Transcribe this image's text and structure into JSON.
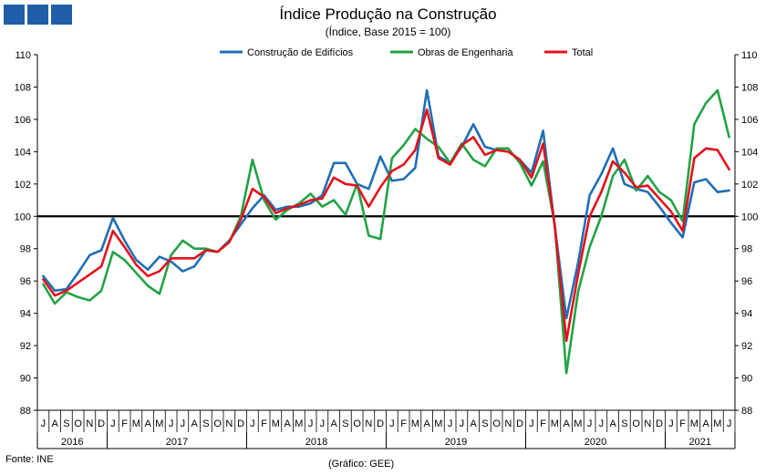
{
  "title": "Índice Produção na Construção",
  "subtitle": "(Índice, Base 2015 = 100)",
  "source": "Fonte: INE",
  "credit": "(Gráfico: GEE)",
  "chart_data": {
    "type": "line",
    "ylim": [
      88,
      110
    ],
    "ytick_step": 2,
    "reference_line": 100,
    "grid": false,
    "legend_position": "top",
    "month_labels": [
      "J",
      "A",
      "S",
      "O",
      "N",
      "D",
      "J",
      "F",
      "M",
      "A",
      "M",
      "J",
      "J",
      "A",
      "S",
      "O",
      "N",
      "D",
      "J",
      "F",
      "M",
      "A",
      "M",
      "J",
      "J",
      "A",
      "S",
      "O",
      "N",
      "D",
      "J",
      "F",
      "M",
      "A",
      "M",
      "J",
      "J",
      "A",
      "S",
      "O",
      "N",
      "D",
      "J",
      "F",
      "M",
      "A",
      "M",
      "J",
      "J",
      "A",
      "S",
      "O",
      "N",
      "D",
      "J",
      "F",
      "M",
      "A",
      "M",
      "J"
    ],
    "years": [
      {
        "label": "2016",
        "start": 0,
        "count": 6
      },
      {
        "label": "2017",
        "start": 6,
        "count": 12
      },
      {
        "label": "2018",
        "start": 18,
        "count": 12
      },
      {
        "label": "2019",
        "start": 30,
        "count": 12
      },
      {
        "label": "2020",
        "start": 42,
        "count": 12
      },
      {
        "label": "2021",
        "start": 54,
        "count": 6
      }
    ],
    "series": [
      {
        "name": "Construção de Edifícios",
        "color": "#1f6fb5",
        "values": [
          96.3,
          95.4,
          95.5,
          96.5,
          97.6,
          97.9,
          99.9,
          98.5,
          97.3,
          96.7,
          97.5,
          97.2,
          96.6,
          96.9,
          97.9,
          97.8,
          98.5,
          99.5,
          100.5,
          101.3,
          100.4,
          100.6,
          100.6,
          100.8,
          101.3,
          103.3,
          103.3,
          102.0,
          101.7,
          103.7,
          102.2,
          102.3,
          103.0,
          107.8,
          103.7,
          103.3,
          104.3,
          105.7,
          104.3,
          104.1,
          104.0,
          103.5,
          102.7,
          105.3,
          99.4,
          93.7,
          97.1,
          101.3,
          102.6,
          104.2,
          102.0,
          101.7,
          101.5,
          100.6,
          99.6,
          98.7,
          102.1,
          102.3,
          101.5,
          101.6
        ]
      },
      {
        "name": "Obras de Engenharia",
        "color": "#22a245",
        "values": [
          95.8,
          94.6,
          95.3,
          95.0,
          94.8,
          95.4,
          97.8,
          97.3,
          96.5,
          95.7,
          95.2,
          97.6,
          98.5,
          98.0,
          98.0,
          97.8,
          98.4,
          100.0,
          103.5,
          101.0,
          99.8,
          100.4,
          100.8,
          101.4,
          100.6,
          101.0,
          100.1,
          102.0,
          98.8,
          98.6,
          103.6,
          104.4,
          105.4,
          104.8,
          104.3,
          103.3,
          104.5,
          103.5,
          103.1,
          104.2,
          104.2,
          103.3,
          101.9,
          103.4,
          99.5,
          90.3,
          95.3,
          98.1,
          100.0,
          102.5,
          103.5,
          101.6,
          102.5,
          101.5,
          101.0,
          99.7,
          105.7,
          107.0,
          107.8,
          104.9
        ]
      },
      {
        "name": "Total",
        "color": "#e3121b",
        "values": [
          96.1,
          95.1,
          95.4,
          95.9,
          96.4,
          96.9,
          99.1,
          98.1,
          97.0,
          96.3,
          96.6,
          97.4,
          97.4,
          97.4,
          97.9,
          97.8,
          98.4,
          99.8,
          101.7,
          101.2,
          100.2,
          100.5,
          100.7,
          101.0,
          101.1,
          102.4,
          102.0,
          101.9,
          100.6,
          101.8,
          102.8,
          103.2,
          104.1,
          106.6,
          103.6,
          103.2,
          104.4,
          104.9,
          103.8,
          104.1,
          104.0,
          103.5,
          102.4,
          104.5,
          99.4,
          92.3,
          96.4,
          100.0,
          101.5,
          103.4,
          102.7,
          101.8,
          101.9,
          101.1,
          100.3,
          99.1,
          103.6,
          104.2,
          104.1,
          102.9
        ]
      }
    ]
  }
}
